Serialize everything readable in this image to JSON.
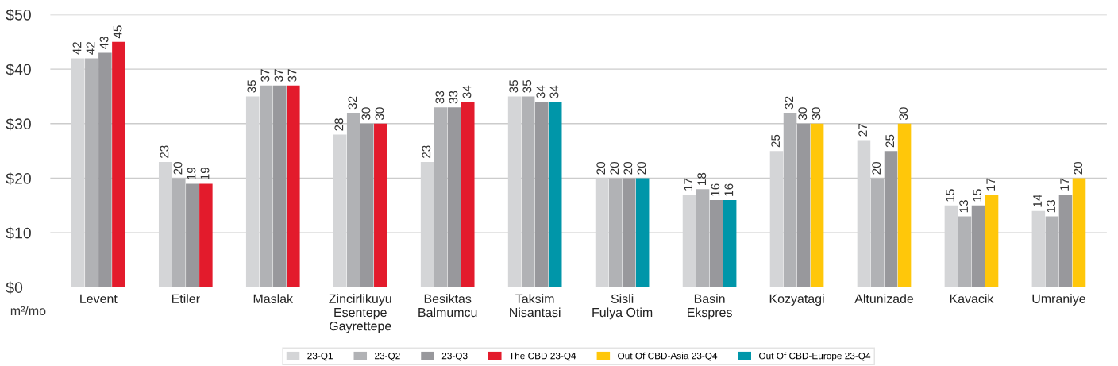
{
  "chart_data": {
    "type": "bar",
    "categories": [
      "Levent",
      "Etiler",
      "Maslak",
      "Zincirlikuyu\nEsentepe\nGayrettepe",
      "Besiktas\nBalmumcu",
      "Taksim\nNisantasi",
      "Sisli\nFulya Otim",
      "Basin\nEkspres",
      "Kozyatagi",
      "Altunizade",
      "Kavacik",
      "Umraniye"
    ],
    "series": [
      {
        "name": "23-Q1",
        "color": "#d4d5d7",
        "values": [
          42,
          23,
          35,
          28,
          23,
          35,
          20,
          17,
          25,
          27,
          15,
          14
        ]
      },
      {
        "name": "23-Q2",
        "color": "#b1b2b5",
        "values": [
          42,
          20,
          37,
          32,
          33,
          35,
          20,
          18,
          32,
          20,
          13,
          13
        ]
      },
      {
        "name": "23-Q3",
        "color": "#98989c",
        "values": [
          43,
          19,
          37,
          30,
          33,
          34,
          20,
          16,
          30,
          25,
          15,
          17
        ]
      },
      {
        "name": "The CBD 23-Q4",
        "color": "#e31b2c",
        "values": [
          45,
          19,
          37,
          30,
          34,
          null,
          null,
          null,
          null,
          null,
          null,
          null
        ]
      },
      {
        "name": "Out Of CBD-Asia 23-Q4",
        "color": "#ffc70a",
        "values": [
          null,
          null,
          null,
          null,
          null,
          null,
          null,
          null,
          30,
          30,
          17,
          20
        ]
      },
      {
        "name": "Out Of CBD-Europe 23-Q4",
        "color": "#0096a9",
        "values": [
          null,
          null,
          null,
          null,
          null,
          34,
          20,
          16,
          null,
          null,
          null,
          null
        ]
      }
    ],
    "ylabel": "m²/mo",
    "ylim": [
      0,
      50
    ],
    "yticks": [
      {
        "value": 0,
        "label": "$0"
      },
      {
        "value": 10,
        "label": "$10"
      },
      {
        "value": 20,
        "label": "$20"
      },
      {
        "value": 30,
        "label": "$30"
      },
      {
        "value": 40,
        "label": "$40"
      },
      {
        "value": 50,
        "label": "$50"
      }
    ],
    "grid": "y",
    "legend": "bottom",
    "data_labels": true
  }
}
